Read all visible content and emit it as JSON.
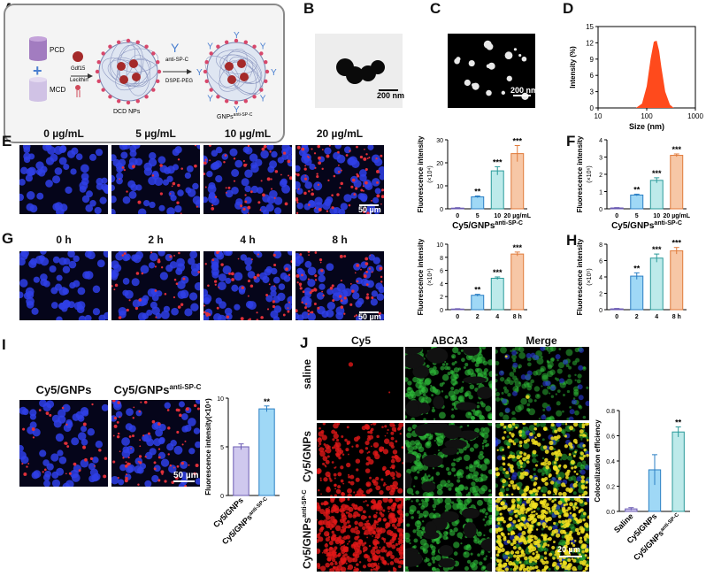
{
  "panels": {
    "A": "A",
    "B": "B",
    "C": "C",
    "D": "D",
    "E": "E",
    "F": "F",
    "G": "G",
    "H": "H",
    "I": "I",
    "J": "J"
  },
  "schematic": {
    "pcd": "PCD",
    "mcd": "MCD",
    "gdf15": "Gdf15",
    "lecithin": "Lecithin",
    "dcd": "DCD NPs",
    "antisp": "anti-SP-C",
    "dspe": "DSPE-PEG",
    "gnp_main": "GNPs",
    "gnp_sup": "anti-SP-C"
  },
  "scalebars": {
    "b": "200 nm",
    "c": "200 nm",
    "e": "50 µm",
    "g": "50 µm",
    "i": "50 µm",
    "j": "20 µm"
  },
  "colors": {
    "blue": "#2b3aff",
    "light_blue": "#9fe0f5",
    "teal": "#bdeaea",
    "orange": "#f6b98f",
    "purple": "#c9bde6",
    "dist_fill": "#ff4a1c"
  },
  "panel_e": {
    "conditions": [
      "0 µg/mL",
      "5 µg/mL",
      "10 µg/mL",
      "20 µg/mL"
    ]
  },
  "panel_g": {
    "conditions": [
      "0 h",
      "2 h",
      "4 h",
      "8 h"
    ]
  },
  "panel_i": {
    "conditions": [
      "Cy5/GNPs",
      "Cy5/GNPs"
    ],
    "cond_sup": "anti-SP-C"
  },
  "panel_j": {
    "columns": [
      "Cy5",
      "ABCA3",
      "Merge"
    ],
    "rows": [
      "saline",
      "Cy5/GNPs",
      "Cy5/GNPs"
    ],
    "row_sup": "anti-SP-C"
  },
  "chart_data": [
    {
      "id": "D",
      "type": "area",
      "xlabel": "Size (nm)",
      "ylabel": "Intensity (%)",
      "xscale": "log",
      "xlim": [
        10,
        1000
      ],
      "ylim": [
        0,
        15
      ],
      "xticks": [
        "10",
        "100",
        "1000"
      ],
      "yticks": [
        "0",
        "3",
        "6",
        "9",
        "12",
        "15"
      ],
      "x": [
        60,
        80,
        100,
        120,
        140,
        160,
        180,
        200,
        240,
        300,
        360
      ],
      "y": [
        0,
        0.8,
        4.0,
        9.0,
        12.2,
        12.4,
        10.5,
        7.5,
        3.0,
        0.6,
        0
      ]
    },
    {
      "id": "E",
      "type": "bar",
      "ylabel": "Fluorescence intensity",
      "yunit": "(×10⁴)",
      "ylim": [
        0,
        30
      ],
      "yticks": [
        "0",
        "10",
        "20",
        "30"
      ],
      "categories": [
        "0",
        "5",
        "10",
        "20"
      ],
      "cat_unit": "µg/mL",
      "values": [
        0.3,
        5.2,
        16.5,
        24
      ],
      "errors": [
        0.2,
        0.4,
        1.8,
        3.5
      ],
      "significance": [
        "",
        "**",
        "***",
        "***"
      ],
      "xlabel_main": "Cy5/GNPs",
      "xlabel_sup": "anti-SP-C"
    },
    {
      "id": "F",
      "type": "bar",
      "ylabel": "Fluorescence intensity",
      "yunit": "(×10⁶)",
      "ylim": [
        0,
        4
      ],
      "yticks": [
        "0",
        "1",
        "2",
        "3",
        "4"
      ],
      "categories": [
        "0",
        "5",
        "10",
        "20"
      ],
      "cat_unit": "µg/mL",
      "values": [
        0.05,
        0.8,
        1.65,
        3.1
      ],
      "errors": [
        0.02,
        0.05,
        0.15,
        0.08
      ],
      "significance": [
        "",
        "**",
        "***",
        "***"
      ],
      "xlabel_main": "Cy5/GNPs",
      "xlabel_sup": "anti-SP-C"
    },
    {
      "id": "G",
      "type": "bar",
      "ylabel": "Fluorescence intensity",
      "yunit": "(×10⁴)",
      "ylim": [
        0,
        10
      ],
      "yticks": [
        "0",
        "2",
        "4",
        "6",
        "8",
        "10"
      ],
      "categories": [
        "0",
        "2",
        "4",
        "8"
      ],
      "cat_unit": "h",
      "values": [
        0.1,
        2.2,
        4.8,
        8.5
      ],
      "errors": [
        0.05,
        0.15,
        0.2,
        0.3
      ],
      "significance": [
        "",
        "**",
        "***",
        "***"
      ]
    },
    {
      "id": "H",
      "type": "bar",
      "ylabel": "Fluorescence intensity",
      "yunit": "(×10⁵)",
      "ylim": [
        0,
        8
      ],
      "yticks": [
        "0",
        "2",
        "4",
        "6",
        "8"
      ],
      "categories": [
        "0",
        "2",
        "4",
        "8"
      ],
      "cat_unit": "h",
      "values": [
        0.1,
        4.1,
        6.3,
        7.2
      ],
      "errors": [
        0.05,
        0.4,
        0.5,
        0.4
      ],
      "significance": [
        "",
        "**",
        "***",
        "***"
      ]
    },
    {
      "id": "I",
      "type": "bar",
      "ylabel": "Fluorescence intensity(×10⁴)",
      "ylim": [
        0,
        10
      ],
      "yticks": [
        "0",
        "5",
        "10"
      ],
      "categories": [
        "Cy5/GNPs",
        "Cy5/GNPs"
      ],
      "cat_sup": [
        "",
        "anti-SP-C"
      ],
      "values": [
        5.0,
        8.9
      ],
      "errors": [
        0.3,
        0.3
      ],
      "significance": [
        "",
        "**"
      ]
    },
    {
      "id": "J",
      "type": "bar",
      "ylabel": "Colocalization efficiency",
      "ylim": [
        0,
        0.8
      ],
      "yticks": [
        "0.0",
        "0.2",
        "0.4",
        "0.6",
        "0.8"
      ],
      "categories": [
        "Saline",
        "Cy5/GNPs",
        "Cy5/GNPs"
      ],
      "cat_sup": [
        "",
        "",
        "anti-SP-C"
      ],
      "values": [
        0.02,
        0.33,
        0.63
      ],
      "errors": [
        0.01,
        0.12,
        0.04
      ],
      "significance": [
        "",
        "",
        "**"
      ]
    }
  ]
}
